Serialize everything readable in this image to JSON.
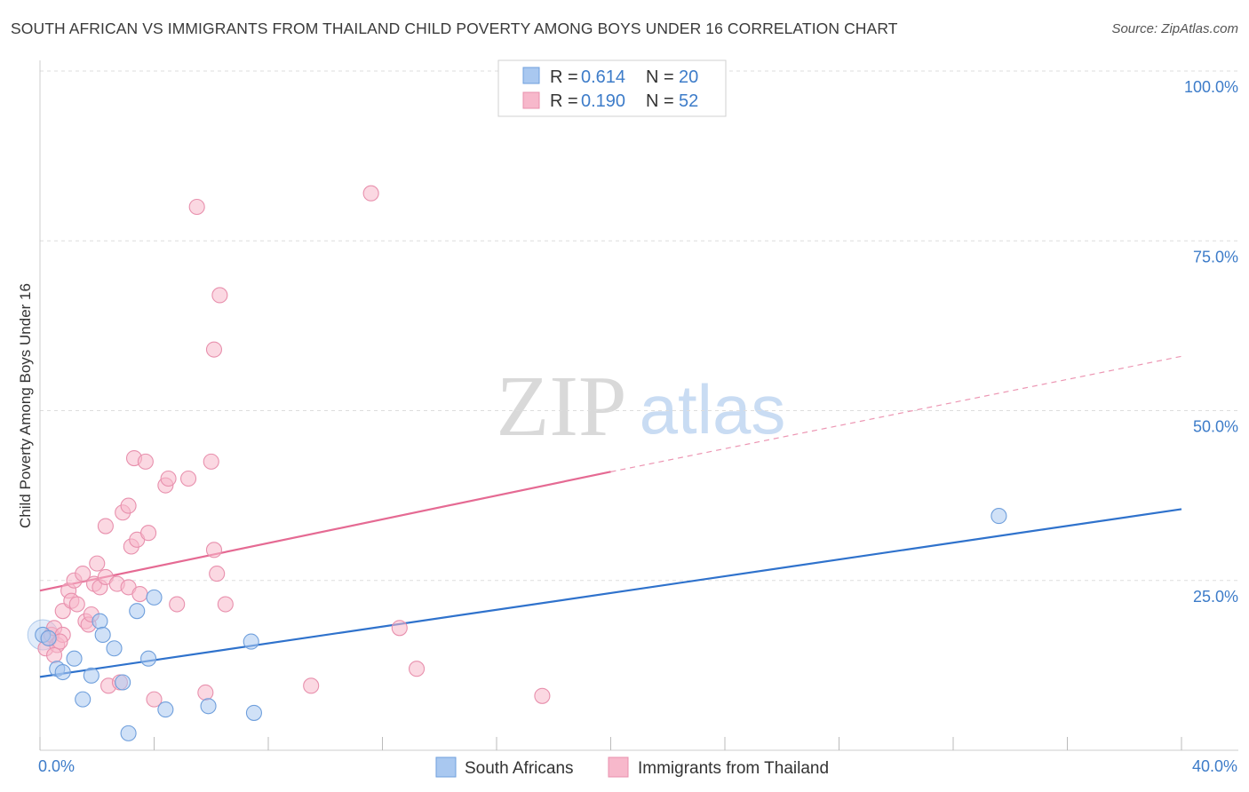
{
  "title": "SOUTH AFRICAN VS IMMIGRANTS FROM THAILAND CHILD POVERTY AMONG BOYS UNDER 16 CORRELATION CHART",
  "source": "Source: ZipAtlas.com",
  "watermark": {
    "zip": "ZIP",
    "atlas": "atlas"
  },
  "colors": {
    "blue": "#a9c8f0",
    "blue_stroke": "#6f9fdc",
    "blue_line": "#2f72cc",
    "pink": "#f7b8cb",
    "pink_stroke": "#e890ad",
    "pink_line": "#e56a93",
    "tick": "#3d7cc9",
    "grid": "#dddddd"
  },
  "legend_top": [
    {
      "r_label": "R = ",
      "r_value": "0.614",
      "n_label": "N = ",
      "n_value": "20",
      "color": "blue"
    },
    {
      "r_label": "R = ",
      "r_value": "0.190",
      "n_label": "N = ",
      "n_value": "52",
      "color": "pink"
    }
  ],
  "legend_bottom": [
    {
      "label": "South Africans",
      "color": "blue"
    },
    {
      "label": "Immigrants from Thailand",
      "color": "pink"
    }
  ],
  "chart_data": {
    "type": "scatter",
    "xlabel": "",
    "ylabel": "Child Poverty Among Boys Under 16",
    "xlim": [
      0,
      40
    ],
    "ylim": [
      0,
      100
    ],
    "x_tick_labels": [
      {
        "value": 0,
        "label": "0.0%"
      },
      {
        "value": 40,
        "label": "40.0%"
      }
    ],
    "y_tick_labels": [
      {
        "value": 25,
        "label": "25.0%"
      },
      {
        "value": 50,
        "label": "50.0%"
      },
      {
        "value": 75,
        "label": "75.0%"
      },
      {
        "value": 100,
        "label": "100.0%"
      }
    ],
    "x_minor_ticks": [
      0,
      4,
      8,
      12,
      16,
      20,
      24,
      28,
      32,
      36,
      40
    ],
    "grid": true,
    "legend_placement": "top-center",
    "series": [
      {
        "name": "South Africans",
        "color": "blue",
        "points": [
          [
            0.1,
            17.0
          ],
          [
            0.6,
            12.0
          ],
          [
            0.8,
            11.5
          ],
          [
            1.2,
            13.5
          ],
          [
            1.5,
            7.5
          ],
          [
            1.8,
            11.0
          ],
          [
            2.1,
            19.0
          ],
          [
            2.2,
            17.0
          ],
          [
            2.6,
            15.0
          ],
          [
            2.9,
            10.0
          ],
          [
            3.1,
            2.5
          ],
          [
            3.4,
            20.5
          ],
          [
            3.8,
            13.5
          ],
          [
            4.0,
            22.5
          ],
          [
            4.4,
            6.0
          ],
          [
            5.9,
            6.5
          ],
          [
            7.4,
            16.0
          ],
          [
            7.5,
            5.5
          ],
          [
            33.6,
            34.5
          ],
          [
            0.3,
            16.5
          ]
        ],
        "trend": {
          "x": [
            0,
            40
          ],
          "y": [
            10.8,
            35.5
          ]
        }
      },
      {
        "name": "Immigrants from Thailand",
        "color": "pink",
        "points": [
          [
            0.2,
            15.0
          ],
          [
            0.3,
            16.5
          ],
          [
            0.4,
            17.0
          ],
          [
            0.5,
            18.0
          ],
          [
            0.6,
            15.5
          ],
          [
            0.8,
            17.0
          ],
          [
            0.8,
            20.5
          ],
          [
            1.0,
            23.5
          ],
          [
            1.1,
            22.0
          ],
          [
            1.2,
            25.0
          ],
          [
            1.3,
            21.5
          ],
          [
            1.5,
            26.0
          ],
          [
            1.6,
            19.0
          ],
          [
            1.7,
            18.5
          ],
          [
            1.8,
            20.0
          ],
          [
            1.9,
            24.5
          ],
          [
            2.0,
            27.5
          ],
          [
            2.1,
            24.0
          ],
          [
            2.3,
            33.0
          ],
          [
            2.3,
            25.5
          ],
          [
            2.4,
            9.5
          ],
          [
            2.7,
            24.5
          ],
          [
            2.8,
            10.0
          ],
          [
            2.9,
            35.0
          ],
          [
            3.1,
            24.0
          ],
          [
            3.1,
            36.0
          ],
          [
            3.2,
            30.0
          ],
          [
            3.3,
            43.0
          ],
          [
            3.4,
            31.0
          ],
          [
            3.5,
            23.0
          ],
          [
            3.7,
            42.5
          ],
          [
            3.8,
            32.0
          ],
          [
            4.0,
            7.5
          ],
          [
            4.4,
            39.0
          ],
          [
            4.5,
            40.0
          ],
          [
            4.8,
            21.5
          ],
          [
            5.2,
            40.0
          ],
          [
            5.5,
            80.0
          ],
          [
            5.8,
            8.5
          ],
          [
            6.0,
            42.5
          ],
          [
            6.1,
            29.5
          ],
          [
            6.2,
            26.0
          ],
          [
            6.3,
            67.0
          ],
          [
            6.1,
            59.0
          ],
          [
            6.5,
            21.5
          ],
          [
            9.5,
            9.5
          ],
          [
            11.6,
            82.0
          ],
          [
            12.6,
            18.0
          ],
          [
            13.2,
            12.0
          ],
          [
            17.6,
            8.0
          ],
          [
            0.7,
            16.0
          ],
          [
            0.5,
            14.0
          ]
        ],
        "trend": {
          "x": [
            0,
            20
          ],
          "y": [
            23.5,
            41.0
          ]
        },
        "trend_extension": {
          "x": [
            20,
            40
          ],
          "y": [
            41.0,
            58.0
          ]
        }
      }
    ]
  }
}
